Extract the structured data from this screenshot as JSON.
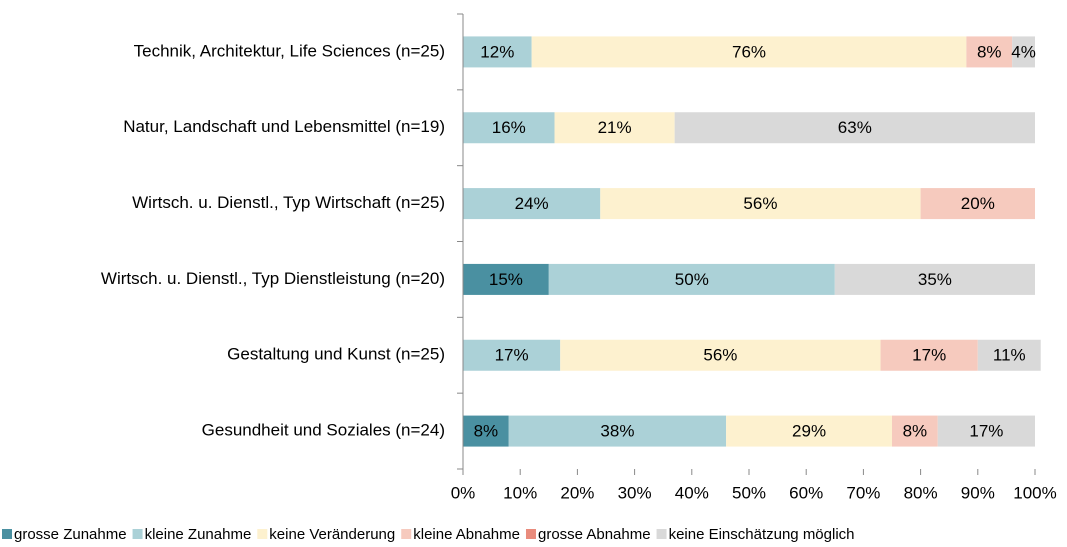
{
  "chart_data": {
    "type": "stacked-bar-horizontal",
    "categories": [
      "Technik, Architektur, Life Sciences (n=25)",
      "Natur, Landschaft und Lebensmittel  (n=19)",
      "Wirtsch. u. Dienstl., Typ Wirtschaft (n=25)",
      "Wirtsch. u. Dienstl., Typ Dienstleistung (n=20)",
      "Gestaltung und Kunst (n=25)",
      "Gesundheit und Soziales (n=24)"
    ],
    "series": [
      {
        "name": "grosse Zunahme",
        "color": "#4a90a1",
        "text_color": "#ffffff",
        "values": [
          null,
          null,
          null,
          15,
          null,
          8
        ],
        "value_labels": [
          null,
          null,
          null,
          "15%",
          null,
          "8%"
        ]
      },
      {
        "name": "kleine Zunahme",
        "color": "#abd1d7",
        "values": [
          12,
          16,
          24,
          50,
          17,
          38
        ],
        "value_labels": [
          "12%",
          "16%",
          "24%",
          "50%",
          "17%",
          "38%"
        ]
      },
      {
        "name": "keine Veränderung",
        "color": "#fdf1cf",
        "values": [
          76,
          21,
          56,
          null,
          56,
          29
        ],
        "value_labels": [
          "76%",
          "21%",
          "56%",
          null,
          "56%",
          "29%"
        ]
      },
      {
        "name": "kleine Abnahme",
        "color": "#f6cabe",
        "values": [
          8,
          null,
          20,
          null,
          17,
          8
        ],
        "value_labels": [
          "8%",
          null,
          "20%",
          null,
          "17%",
          "8%"
        ]
      },
      {
        "name": "grosse Abnahme",
        "color": "#e98b7c",
        "values": [
          null,
          null,
          null,
          null,
          null,
          null
        ]
      },
      {
        "name": "keine Einschätzung möglich",
        "color": "#d9d9d9",
        "values": [
          4,
          63,
          null,
          35,
          11,
          17
        ],
        "value_labels": [
          "4%",
          "63%",
          null,
          "35%",
          "11%",
          "17%"
        ]
      }
    ],
    "xlim": [
      0,
      100
    ],
    "xticks": [
      {
        "value": 0,
        "label": "0%"
      },
      {
        "value": 10,
        "label": "10%"
      },
      {
        "value": 20,
        "label": "20%"
      },
      {
        "value": 30,
        "label": "30%"
      },
      {
        "value": 40,
        "label": "40%"
      },
      {
        "value": 50,
        "label": "50%"
      },
      {
        "value": 60,
        "label": "60%"
      },
      {
        "value": 70,
        "label": "70%"
      },
      {
        "value": 80,
        "label": "80%"
      },
      {
        "value": 90,
        "label": "90%"
      },
      {
        "value": 100,
        "label": "100%"
      }
    ],
    "legend": "bottom"
  }
}
